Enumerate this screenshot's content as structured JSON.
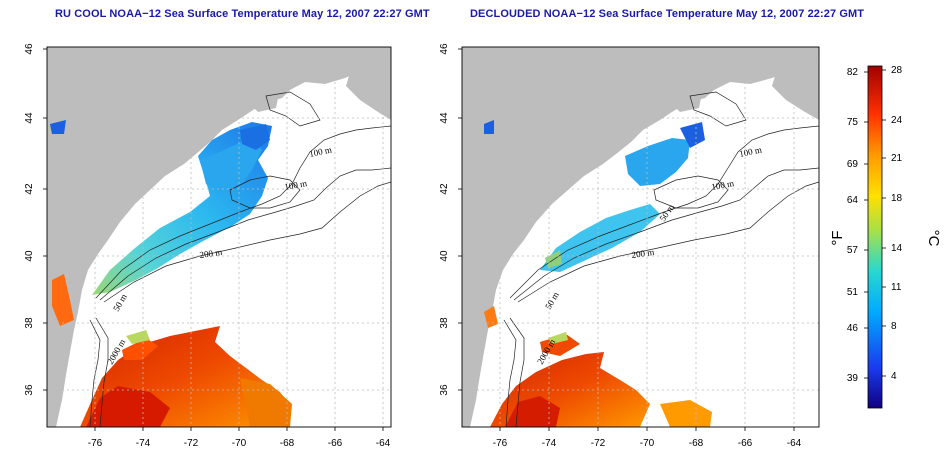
{
  "left_panel": {
    "title": "RU COOL NOAA−12 Sea Surface Temperature May 12, 2007 22:27 GMT"
  },
  "right_panel": {
    "title": "DECLOUDED NOAA−12 Sea Surface Temperature May 12, 2007 22:27 GMT"
  },
  "axes": {
    "x_ticks": [
      "-76",
      "-74",
      "-72",
      "-70",
      "-68",
      "-66",
      "-64"
    ],
    "y_ticks": [
      "36",
      "38",
      "40",
      "42",
      "44",
      "46"
    ]
  },
  "contour_labels": {
    "left": [
      "100 m",
      "100 m",
      "200 m",
      "50 m",
      "2000 m"
    ],
    "right": [
      "100 m",
      "100 m",
      "50 m",
      "200 m",
      "50 m",
      "2000 m"
    ]
  },
  "colorbar": {
    "fahrenheit_ticks": [
      "82",
      "75",
      "69",
      "64",
      "57",
      "51",
      "46",
      "39"
    ],
    "celsius_ticks": [
      "28",
      "24",
      "21",
      "18",
      "14",
      "11",
      "8",
      "4"
    ],
    "fahrenheit_unit": "°F",
    "celsius_unit": "°C"
  },
  "colors": {
    "land": "#bdbdbd",
    "title": "#1a1aa8",
    "grid": "#bbbbbb"
  }
}
